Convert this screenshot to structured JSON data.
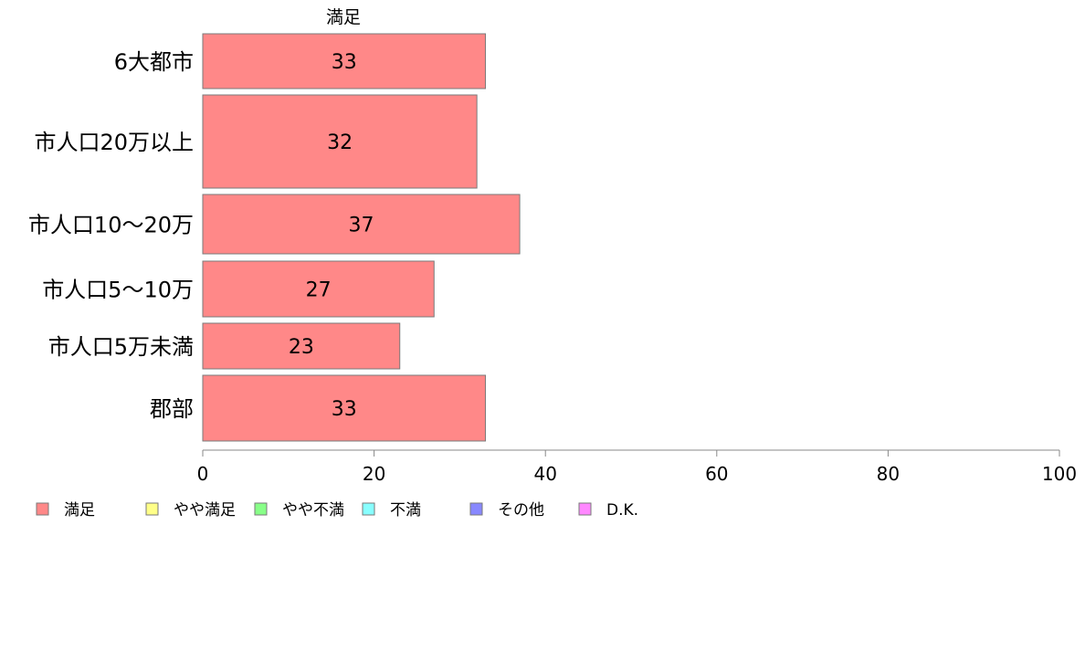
{
  "chart_data": {
    "type": "bar",
    "orientation": "horizontal",
    "series_title": "満足",
    "categories": [
      "6大都市",
      "市人口20万以上",
      "市人口10〜20万",
      "市人口5〜10万",
      "市人口5万未満",
      "郡部"
    ],
    "series": [
      {
        "name": "満足",
        "color": "#ff8888",
        "values": [
          33,
          32,
          37,
          27,
          23,
          33
        ]
      }
    ],
    "bar_value_labels": [
      "33",
      "32",
      "37",
      "27",
      "23",
      "33"
    ],
    "xlim": [
      0,
      100
    ],
    "x_ticks": [
      0,
      20,
      40,
      60,
      80,
      100
    ],
    "x_tick_labels": [
      "0",
      "20",
      "40",
      "60",
      "80",
      "100"
    ],
    "grid": false,
    "legend_position": "bottom-left",
    "legend": [
      {
        "label": "満足",
        "color": "#ff8888"
      },
      {
        "label": "やや満足",
        "color": "#ffff88"
      },
      {
        "label": "やや不満",
        "color": "#88ff88"
      },
      {
        "label": "不満",
        "color": "#88ffff"
      },
      {
        "label": "その他",
        "color": "#8888ff"
      },
      {
        "label": "D.K.",
        "color": "#ff88ff"
      }
    ]
  }
}
